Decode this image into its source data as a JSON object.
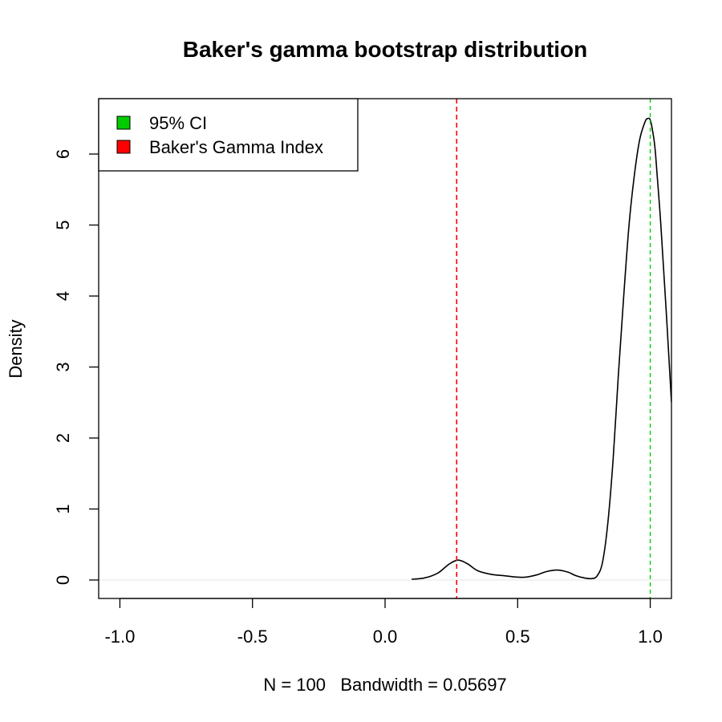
{
  "chart_data": {
    "type": "line",
    "title": "Baker's gamma bootstrap distribution",
    "xlabel": "N = 100   Bandwidth = 0.05697",
    "ylabel": "Density",
    "xlim": [
      -1.08,
      1.08
    ],
    "ylim": [
      -0.26,
      6.78
    ],
    "x_ticks": [
      -1.0,
      -0.5,
      0.0,
      0.5,
      1.0
    ],
    "x_tick_labels": [
      "-1.0",
      "-0.5",
      "0.0",
      "0.5",
      "1.0"
    ],
    "y_ticks": [
      0,
      1,
      2,
      3,
      4,
      5,
      6
    ],
    "y_tick_labels": [
      "0",
      "1",
      "2",
      "3",
      "4",
      "5",
      "6"
    ],
    "grid": false,
    "legend_position": "top-left",
    "legend": [
      {
        "label": "95% CI",
        "color": "#00CD00"
      },
      {
        "label": "Baker's Gamma Index",
        "color": "#FF0000"
      }
    ],
    "series": [
      {
        "color": "#000000",
        "x": [
          0.1,
          0.15,
          0.2,
          0.24,
          0.275,
          0.31,
          0.35,
          0.4,
          0.45,
          0.5,
          0.53,
          0.57,
          0.61,
          0.65,
          0.69,
          0.72,
          0.75,
          0.78,
          0.8,
          0.82,
          0.84,
          0.86,
          0.88,
          0.9,
          0.92,
          0.94,
          0.96,
          0.98,
          0.99,
          1.0,
          1.01,
          1.02,
          1.04,
          1.06,
          1.08
        ],
        "y": [
          0.01,
          0.03,
          0.1,
          0.22,
          0.28,
          0.23,
          0.13,
          0.08,
          0.06,
          0.04,
          0.04,
          0.07,
          0.12,
          0.14,
          0.11,
          0.06,
          0.03,
          0.02,
          0.06,
          0.25,
          0.8,
          1.7,
          2.9,
          4.0,
          5.0,
          5.7,
          6.2,
          6.45,
          6.5,
          6.48,
          6.3,
          6.0,
          5.0,
          3.8,
          2.5
        ]
      }
    ],
    "ci_line": {
      "x": 1.0,
      "color": "#00CD00"
    },
    "index_line": {
      "x": 0.27,
      "color": "#FF0000"
    },
    "zero_baseline": 0
  }
}
